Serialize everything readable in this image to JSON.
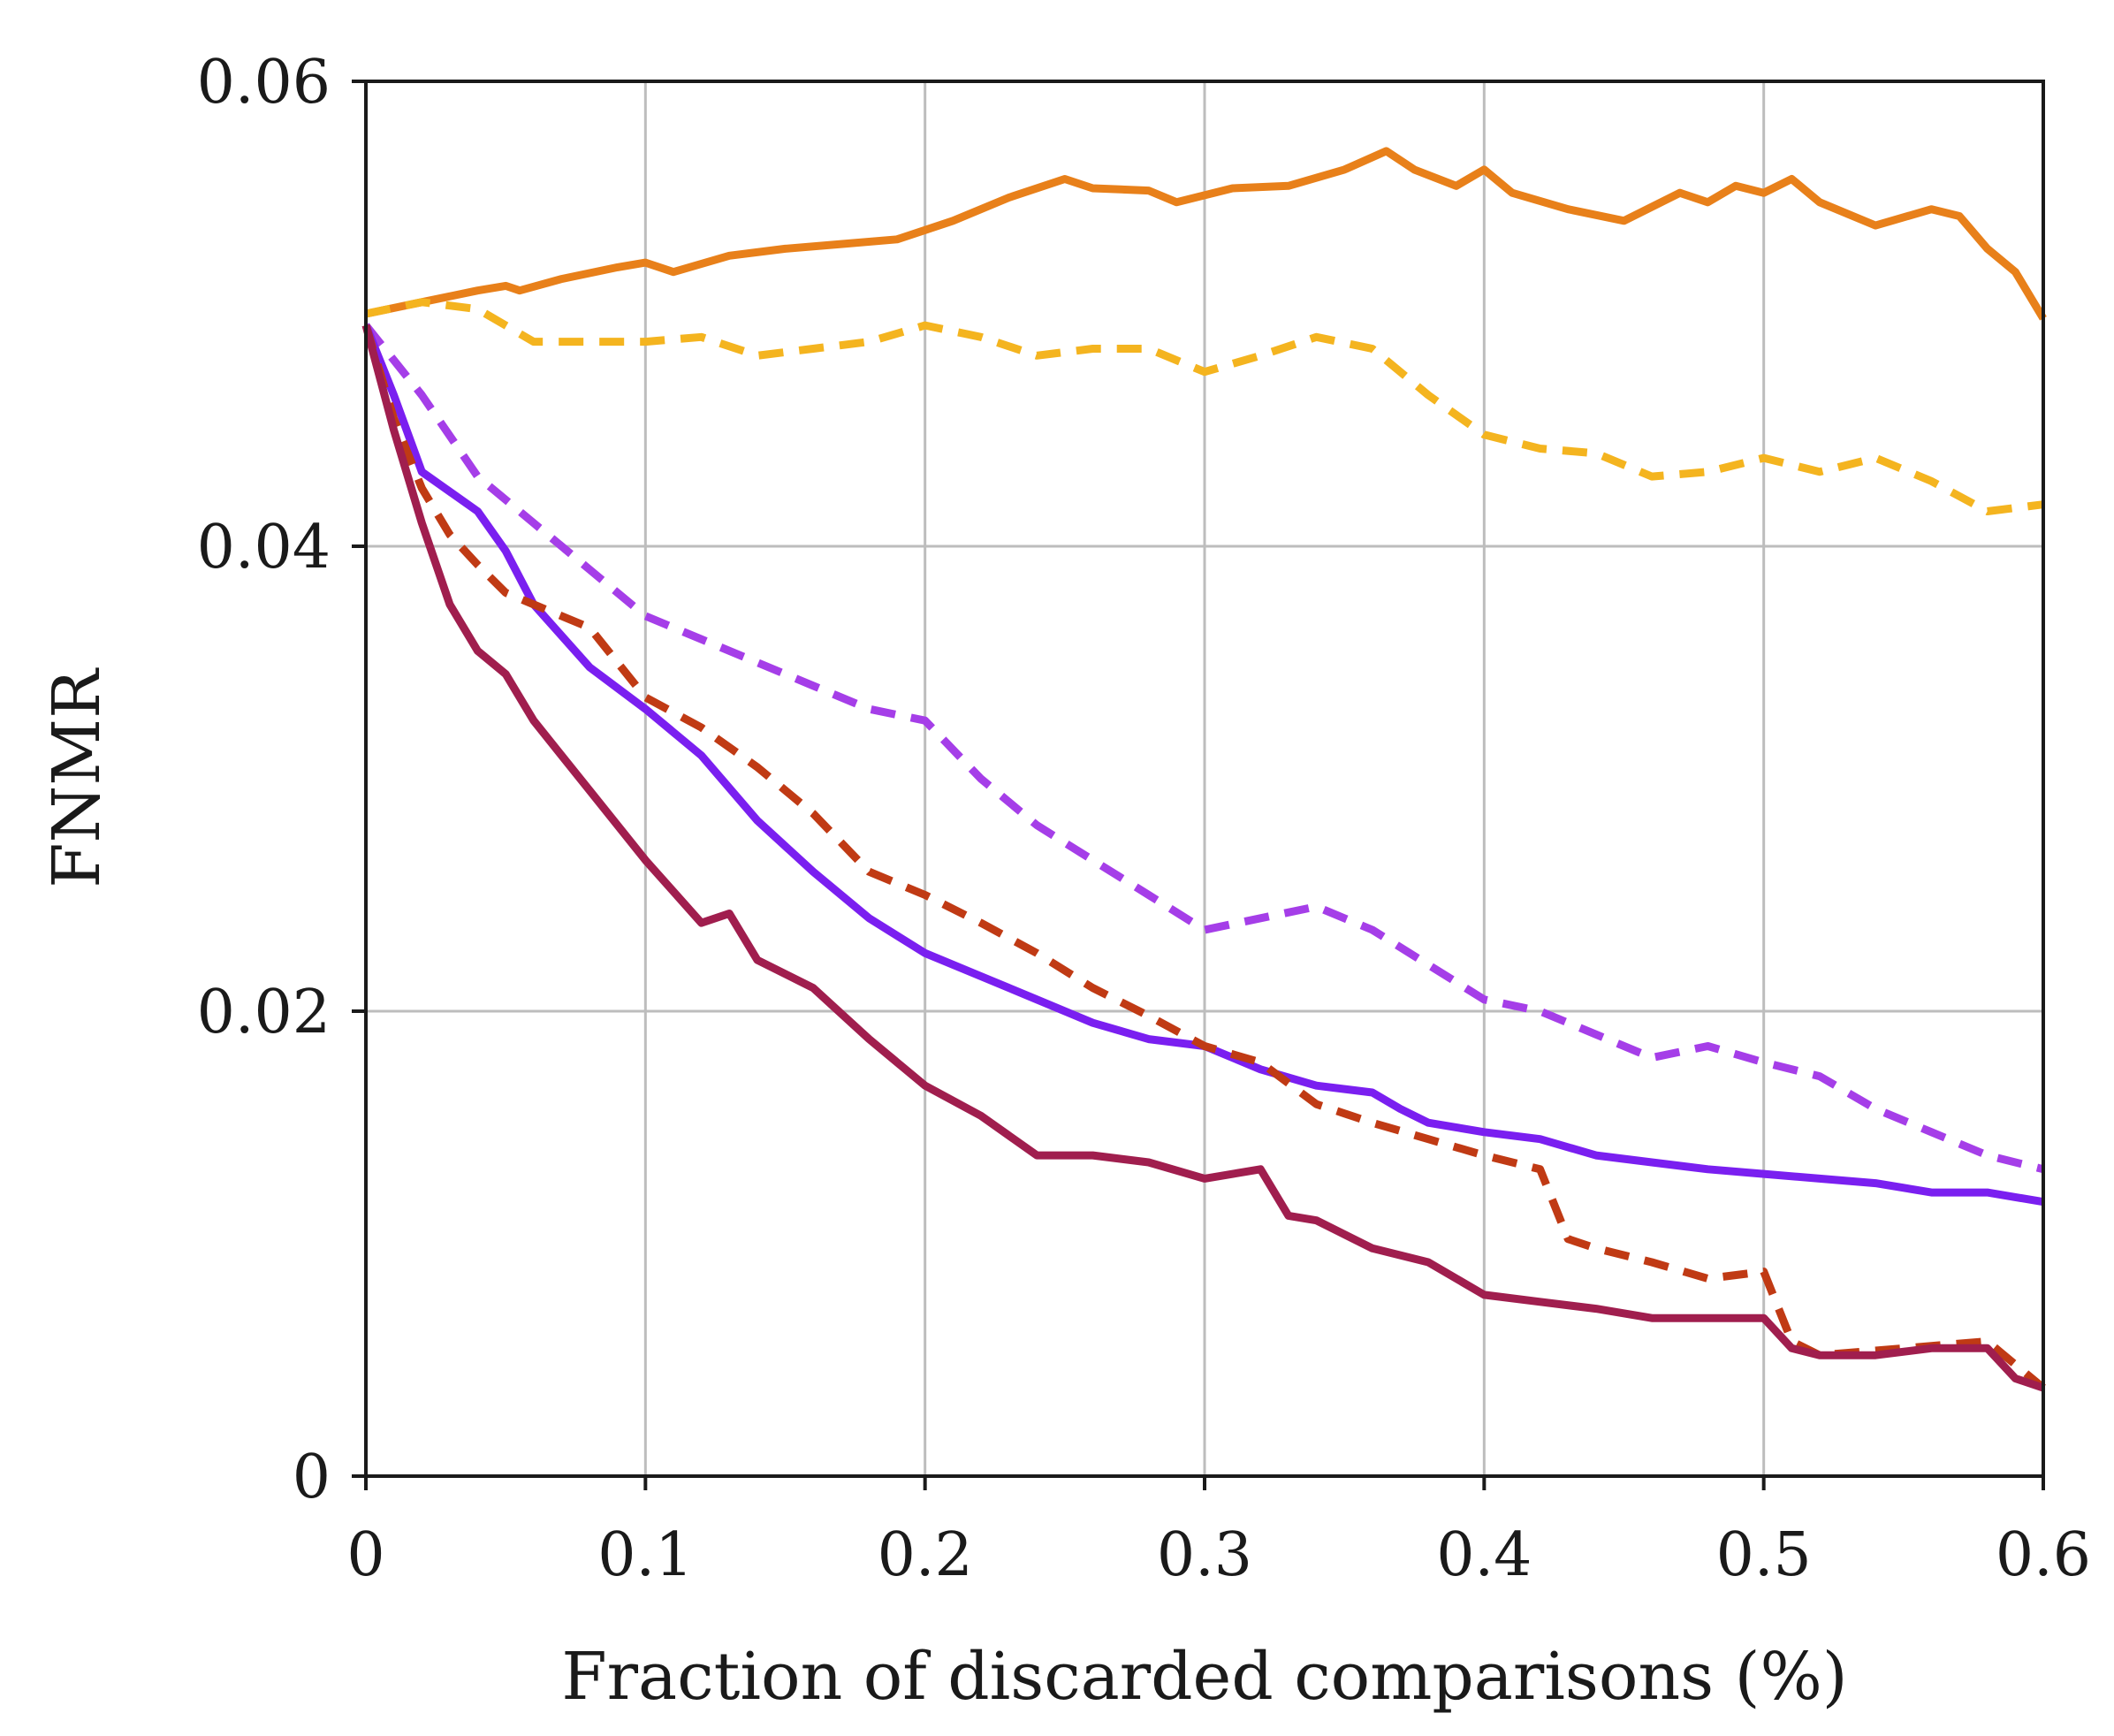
{
  "chart_data": {
    "type": "line",
    "title": "",
    "xlabel": "Fraction of discarded comparisons (%)",
    "ylabel": "FNMR",
    "xlim": [
      0,
      0.6
    ],
    "ylim": [
      0,
      0.06
    ],
    "xticks": [
      0,
      0.1,
      0.2,
      0.3,
      0.4,
      0.5,
      0.6
    ],
    "xtick_labels": [
      "0",
      "0.1",
      "0.2",
      "0.3",
      "0.4",
      "0.5",
      "0.6"
    ],
    "yticks": [
      0,
      0.02,
      0.04,
      0.06
    ],
    "ytick_labels": [
      "0",
      "0.02",
      "0.04",
      "0.06"
    ],
    "grid": true,
    "legend": "none",
    "series": [
      {
        "name": "orange-solid",
        "color": "#e8801a",
        "dash": "solid",
        "x": [
          0,
          0.02,
          0.04,
          0.05,
          0.055,
          0.07,
          0.09,
          0.1,
          0.11,
          0.13,
          0.15,
          0.17,
          0.19,
          0.21,
          0.23,
          0.25,
          0.26,
          0.28,
          0.29,
          0.31,
          0.33,
          0.35,
          0.365,
          0.375,
          0.39,
          0.4,
          0.41,
          0.43,
          0.45,
          0.47,
          0.48,
          0.49,
          0.5,
          0.51,
          0.52,
          0.54,
          0.56,
          0.57,
          0.58,
          0.59,
          0.6
        ],
        "y": [
          0.05,
          0.0505,
          0.051,
          0.0512,
          0.051,
          0.0515,
          0.052,
          0.0522,
          0.0518,
          0.0525,
          0.0528,
          0.053,
          0.0532,
          0.054,
          0.055,
          0.0558,
          0.0554,
          0.0553,
          0.0548,
          0.0554,
          0.0555,
          0.0562,
          0.057,
          0.0562,
          0.0555,
          0.0562,
          0.0552,
          0.0545,
          0.054,
          0.0552,
          0.0548,
          0.0555,
          0.0552,
          0.0558,
          0.0548,
          0.0538,
          0.0545,
          0.0542,
          0.0528,
          0.0518,
          0.0498
        ]
      },
      {
        "name": "yellow-dashed",
        "color": "#f4b41f",
        "dash": "dashed",
        "x": [
          0,
          0.02,
          0.04,
          0.06,
          0.08,
          0.1,
          0.12,
          0.14,
          0.16,
          0.18,
          0.2,
          0.22,
          0.24,
          0.26,
          0.28,
          0.3,
          0.32,
          0.34,
          0.36,
          0.38,
          0.4,
          0.42,
          0.44,
          0.46,
          0.48,
          0.5,
          0.52,
          0.54,
          0.56,
          0.58,
          0.6
        ],
        "y": [
          0.05,
          0.0505,
          0.0502,
          0.0488,
          0.0488,
          0.0488,
          0.049,
          0.0482,
          0.0485,
          0.0488,
          0.0495,
          0.049,
          0.0482,
          0.0485,
          0.0485,
          0.0475,
          0.0482,
          0.049,
          0.0485,
          0.0465,
          0.0448,
          0.0442,
          0.044,
          0.043,
          0.0432,
          0.0438,
          0.0432,
          0.0438,
          0.0428,
          0.0415,
          0.0418
        ]
      },
      {
        "name": "violet-dashed",
        "color": "#a53ee8",
        "dash": "dashed",
        "x": [
          0,
          0.02,
          0.04,
          0.06,
          0.08,
          0.1,
          0.12,
          0.14,
          0.16,
          0.18,
          0.2,
          0.22,
          0.24,
          0.26,
          0.28,
          0.3,
          0.32,
          0.34,
          0.36,
          0.38,
          0.4,
          0.42,
          0.44,
          0.46,
          0.48,
          0.5,
          0.52,
          0.54,
          0.56,
          0.58,
          0.6
        ],
        "y": [
          0.0495,
          0.0465,
          0.043,
          0.041,
          0.039,
          0.037,
          0.036,
          0.035,
          0.034,
          0.033,
          0.0325,
          0.03,
          0.028,
          0.0265,
          0.025,
          0.0235,
          0.024,
          0.0245,
          0.0235,
          0.022,
          0.0205,
          0.02,
          0.019,
          0.018,
          0.0185,
          0.0178,
          0.0172,
          0.0158,
          0.0148,
          0.0138,
          0.0132
        ]
      },
      {
        "name": "blue-violet-solid",
        "color": "#7a1ff0",
        "dash": "solid",
        "x": [
          0,
          0.01,
          0.02,
          0.04,
          0.05,
          0.06,
          0.08,
          0.1,
          0.12,
          0.14,
          0.16,
          0.18,
          0.2,
          0.22,
          0.24,
          0.26,
          0.28,
          0.3,
          0.32,
          0.34,
          0.36,
          0.37,
          0.38,
          0.4,
          0.42,
          0.44,
          0.46,
          0.48,
          0.5,
          0.52,
          0.54,
          0.56,
          0.58,
          0.6
        ],
        "y": [
          0.0495,
          0.0465,
          0.0432,
          0.0415,
          0.0398,
          0.0375,
          0.0348,
          0.033,
          0.031,
          0.0282,
          0.026,
          0.024,
          0.0225,
          0.0215,
          0.0205,
          0.0195,
          0.0188,
          0.0185,
          0.0175,
          0.0168,
          0.0165,
          0.0158,
          0.0152,
          0.0148,
          0.0145,
          0.0138,
          0.0135,
          0.0132,
          0.013,
          0.0128,
          0.0126,
          0.0122,
          0.0122,
          0.0118
        ]
      },
      {
        "name": "red-dashed",
        "color": "#c03a14",
        "dash": "dashed",
        "x": [
          0,
          0.01,
          0.02,
          0.03,
          0.04,
          0.05,
          0.06,
          0.08,
          0.1,
          0.12,
          0.14,
          0.16,
          0.18,
          0.2,
          0.22,
          0.24,
          0.26,
          0.28,
          0.3,
          0.32,
          0.34,
          0.36,
          0.38,
          0.4,
          0.42,
          0.43,
          0.44,
          0.46,
          0.48,
          0.5,
          0.51,
          0.52,
          0.54,
          0.56,
          0.58,
          0.6
        ],
        "y": [
          0.0495,
          0.0455,
          0.0425,
          0.0405,
          0.0392,
          0.038,
          0.0375,
          0.0365,
          0.0335,
          0.0322,
          0.0305,
          0.0285,
          0.026,
          0.025,
          0.0238,
          0.0225,
          0.021,
          0.0198,
          0.0185,
          0.0178,
          0.016,
          0.0152,
          0.0145,
          0.0138,
          0.0132,
          0.0102,
          0.0098,
          0.0092,
          0.0085,
          0.0088,
          0.0058,
          0.0052,
          0.0054,
          0.0056,
          0.0058,
          0.0038
        ]
      },
      {
        "name": "crimson-solid",
        "color": "#a01e4e",
        "dash": "solid",
        "x": [
          0,
          0.01,
          0.02,
          0.03,
          0.04,
          0.05,
          0.06,
          0.08,
          0.1,
          0.12,
          0.13,
          0.14,
          0.16,
          0.18,
          0.2,
          0.22,
          0.24,
          0.26,
          0.28,
          0.3,
          0.32,
          0.33,
          0.34,
          0.36,
          0.38,
          0.4,
          0.42,
          0.44,
          0.46,
          0.48,
          0.5,
          0.51,
          0.52,
          0.54,
          0.56,
          0.58,
          0.59,
          0.6
        ],
        "y": [
          0.0495,
          0.045,
          0.041,
          0.0375,
          0.0355,
          0.0345,
          0.0325,
          0.0295,
          0.0265,
          0.0238,
          0.0242,
          0.0222,
          0.021,
          0.0188,
          0.0168,
          0.0155,
          0.0138,
          0.0138,
          0.0135,
          0.0128,
          0.0132,
          0.0112,
          0.011,
          0.0098,
          0.0092,
          0.0078,
          0.0075,
          0.0072,
          0.0068,
          0.0068,
          0.0068,
          0.0055,
          0.0052,
          0.0052,
          0.0055,
          0.0055,
          0.0042,
          0.0038
        ]
      }
    ]
  }
}
